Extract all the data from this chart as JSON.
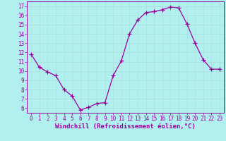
{
  "x": [
    0,
    1,
    2,
    3,
    4,
    5,
    6,
    7,
    8,
    9,
    10,
    11,
    12,
    13,
    14,
    15,
    16,
    17,
    18,
    19,
    20,
    21,
    22,
    23
  ],
  "y": [
    11.8,
    10.4,
    9.9,
    9.5,
    8.0,
    7.3,
    5.8,
    6.1,
    6.5,
    6.6,
    9.5,
    11.1,
    14.0,
    15.5,
    16.3,
    16.4,
    16.6,
    16.9,
    16.8,
    15.1,
    13.0,
    11.2,
    10.2,
    10.2
  ],
  "line_color": "#990099",
  "marker": "+",
  "marker_size": 4,
  "background_color": "#b2f0f0",
  "grid_color": "#aadddd",
  "xlabel": "Windchill (Refroidissement éolien,°C)",
  "xlim": [
    -0.5,
    23.5
  ],
  "ylim": [
    5.5,
    17.5
  ],
  "yticks": [
    6,
    7,
    8,
    9,
    10,
    11,
    12,
    13,
    14,
    15,
    16,
    17
  ],
  "xticks": [
    0,
    1,
    2,
    3,
    4,
    5,
    6,
    7,
    8,
    9,
    10,
    11,
    12,
    13,
    14,
    15,
    16,
    17,
    18,
    19,
    20,
    21,
    22,
    23
  ],
  "tick_color": "#990099",
  "label_color": "#990099",
  "label_fontsize": 6.5,
  "tick_fontsize": 5.5
}
